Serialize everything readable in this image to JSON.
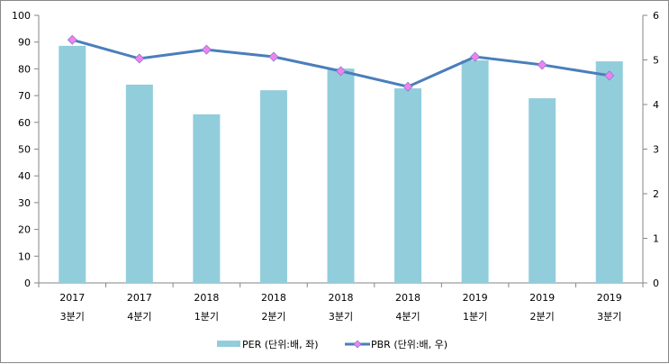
{
  "chart_data": {
    "type": "bar+line",
    "categories": [
      [
        "2017",
        "3분기"
      ],
      [
        "2017",
        "4분기"
      ],
      [
        "2018",
        "1분기"
      ],
      [
        "2018",
        "2분기"
      ],
      [
        "2018",
        "3분기"
      ],
      [
        "2018",
        "4분기"
      ],
      [
        "2019",
        "1분기"
      ],
      [
        "2019",
        "2분기"
      ],
      [
        "2019",
        "3분기"
      ]
    ],
    "series": [
      {
        "name": "PER (단위:배, 좌)",
        "type": "bar",
        "axis": "left",
        "color": "#92CDDC",
        "values": [
          88.6,
          74.1,
          63.0,
          72.0,
          80.1,
          72.7,
          83.2,
          69.0,
          82.8
        ]
      },
      {
        "name": "PBR (단위:배, 우)",
        "type": "line",
        "axis": "right",
        "color": "#4A7EBB",
        "marker_color": "#EE82EE",
        "values": [
          5.45,
          5.03,
          5.23,
          5.07,
          4.75,
          4.4,
          5.07,
          4.89,
          4.65
        ]
      }
    ],
    "left_axis": {
      "min": 0,
      "max": 100,
      "step": 10,
      "ticks": [
        "0",
        "10",
        "20",
        "30",
        "40",
        "50",
        "60",
        "70",
        "80",
        "90",
        "100"
      ]
    },
    "right_axis": {
      "min": 0,
      "max": 6,
      "step": 1,
      "ticks": [
        "0",
        "1",
        "2",
        "3",
        "4",
        "5",
        "6"
      ]
    },
    "legend_position": "bottom",
    "grid": false
  }
}
